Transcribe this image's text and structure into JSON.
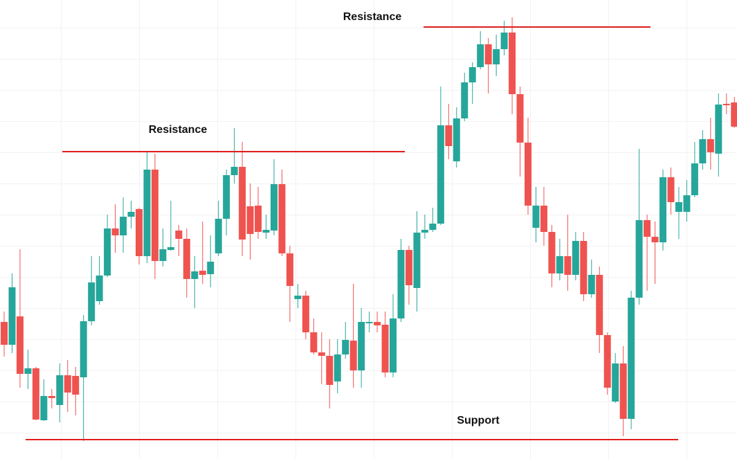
{
  "chart_data": {
    "type": "candlestick",
    "up_color": "#26a69a",
    "down_color": "#ef5350",
    "level_color": "#e01e1e",
    "ylim": [
      0,
      663
    ],
    "series": {
      "open": [
        198,
        165,
        206,
        123,
        131,
        56,
        91,
        78,
        121,
        120,
        118,
        199,
        228,
        265,
        333,
        323,
        350,
        361,
        293,
        418,
        286,
        302,
        330,
        318,
        260,
        272,
        267,
        297,
        347,
        410,
        422,
        365,
        366,
        327,
        330,
        397,
        297,
        231,
        236,
        183,
        154,
        149,
        112,
        151,
        171,
        128,
        196,
        198,
        194,
        125,
        203,
        302,
        247,
        327,
        331,
        340,
        482,
        430,
        492,
        544,
        566,
        599,
        570,
        592,
        616,
        527,
        457,
        334,
        366,
        328,
        268,
        293,
        266,
        315,
        238,
        266,
        179,
        83,
        138,
        58,
        233,
        345,
        321,
        313,
        407,
        357,
        357,
        381,
        427,
        462,
        441,
        513,
        515
      ],
      "high": [
        213,
        268,
        303,
        158,
        133,
        115,
        101,
        138,
        143,
        133,
        208,
        293,
        293,
        353,
        368,
        378,
        373,
        363,
        443,
        441,
        333,
        373,
        338,
        333,
        293,
        343,
        323,
        373,
        418,
        478,
        458,
        398,
        393,
        353,
        433,
        418,
        308,
        253,
        243,
        203,
        183,
        173,
        173,
        198,
        253,
        218,
        213,
        213,
        213,
        238,
        318,
        308,
        358,
        353,
        363,
        538,
        513,
        508,
        558,
        573,
        618,
        608,
        613,
        633,
        638,
        538,
        493,
        393,
        393,
        338,
        318,
        353,
        328,
        328,
        288,
        278,
        183,
        153,
        163,
        243,
        448,
        353,
        343,
        418,
        421,
        393,
        403,
        458,
        475,
        493,
        528,
        528,
        523
      ],
      "low": [
        148,
        153,
        103,
        101,
        56,
        55,
        73,
        53,
        68,
        63,
        26,
        193,
        223,
        263,
        298,
        298,
        333,
        281,
        283,
        260,
        278,
        301,
        293,
        233,
        218,
        253,
        248,
        293,
        323,
        398,
        293,
        288,
        318,
        318,
        323,
        293,
        198,
        218,
        173,
        151,
        108,
        73,
        95,
        145,
        103,
        103,
        183,
        183,
        118,
        118,
        198,
        223,
        213,
        318,
        328,
        338,
        433,
        421,
        488,
        513,
        563,
        528,
        553,
        583,
        498,
        408,
        353,
        313,
        308,
        248,
        258,
        243,
        258,
        228,
        233,
        153,
        93,
        81,
        33,
        43,
        223,
        243,
        253,
        301,
        353,
        318,
        343,
        378,
        418,
        418,
        408,
        498,
        478
      ],
      "close": [
        165,
        248,
        123,
        131,
        57,
        91,
        88,
        121,
        96,
        93,
        199,
        255,
        265,
        333,
        323,
        350,
        357,
        293,
        418,
        286,
        303,
        306,
        318,
        260,
        271,
        266,
        285,
        347,
        410,
        422,
        317,
        325,
        328,
        331,
        397,
        297,
        250,
        236,
        183,
        154,
        149,
        107,
        151,
        172,
        128,
        198,
        198,
        193,
        125,
        203,
        302,
        251,
        327,
        331,
        340,
        482,
        452,
        492,
        544,
        566,
        599,
        570,
        592,
        616,
        527,
        457,
        366,
        366,
        328,
        268,
        293,
        266,
        315,
        238,
        266,
        179,
        103,
        138,
        58,
        233,
        345,
        321,
        313,
        407,
        371,
        371,
        381,
        427,
        462,
        443,
        512,
        511,
        480
      ]
    },
    "levels": [
      {
        "label": "Resistance",
        "value": 444
      },
      {
        "label": "Resistance",
        "value": 624
      },
      {
        "label": "Support",
        "value": 28
      }
    ]
  }
}
